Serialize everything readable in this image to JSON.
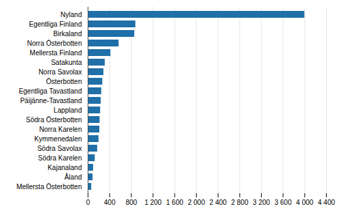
{
  "chart_data": {
    "type": "bar",
    "orientation": "horizontal",
    "categories": [
      "Mellersta Österbotten",
      "Åland",
      "Kajanaland",
      "Södra Karelen",
      "Södra Savolax",
      "Kymmenedalen",
      "Norra Karelen",
      "Södra Österbotten",
      "Lappland",
      "Päijänne-Tavastland",
      "Egentliga Tavastland",
      "Österbotten",
      "Norra Savolax",
      "Satakunta",
      "Mellersta Finland",
      "Norra Österbotten",
      "Birkaland",
      "Egentliga Finland",
      "Nyland"
    ],
    "values": [
      65,
      90,
      100,
      130,
      175,
      200,
      215,
      220,
      230,
      240,
      250,
      270,
      290,
      315,
      420,
      570,
      860,
      880,
      4000
    ],
    "color": "#1f6fa8",
    "xlim": [
      0,
      4400
    ],
    "xticks": [
      0,
      400,
      800,
      {
        "value": 1200,
        "label": "1 200"
      },
      {
        "value": 1600,
        "label": "1 600"
      },
      {
        "value": 2000,
        "label": "2 000"
      },
      {
        "value": 2400,
        "label": "2 400"
      },
      {
        "value": 2800,
        "label": "2 800"
      },
      {
        "value": 3200,
        "label": "3 200"
      },
      {
        "value": 3600,
        "label": "3 600"
      },
      {
        "value": 4000,
        "label": "4 000"
      },
      {
        "value": 4400,
        "label": "4 400"
      }
    ],
    "grid": true
  }
}
